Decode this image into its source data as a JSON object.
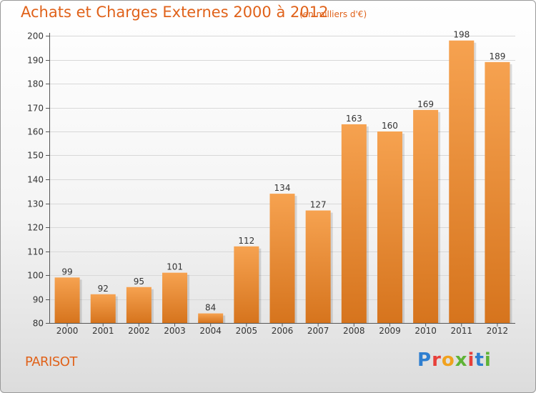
{
  "title": "Achats et Charges Externes 2000 à 2012",
  "subtitle": "(en milliers d'€)",
  "location": "PARISOT",
  "logo": {
    "text": "Proxiti",
    "colors": [
      "#2f7fd0",
      "#e8403a",
      "#f1a21e",
      "#5fb336",
      "#e8403a",
      "#2f7fd0",
      "#5fb336"
    ]
  },
  "colors": {
    "title": "#e0621a",
    "bar_light": "#f6a250",
    "bar_dark": "#d6741d"
  },
  "chart_data": {
    "type": "bar",
    "categories": [
      "2000",
      "2001",
      "2002",
      "2003",
      "2004",
      "2005",
      "2006",
      "2007",
      "2008",
      "2009",
      "2010",
      "2011",
      "2012"
    ],
    "values": [
      99,
      92,
      95,
      101,
      84,
      112,
      134,
      127,
      163,
      160,
      169,
      198,
      189
    ],
    "ylim": [
      80,
      200
    ],
    "yticks": [
      80,
      90,
      100,
      110,
      120,
      130,
      140,
      150,
      160,
      170,
      180,
      190,
      200
    ],
    "grid": true,
    "xlabel": "",
    "ylabel": ""
  }
}
